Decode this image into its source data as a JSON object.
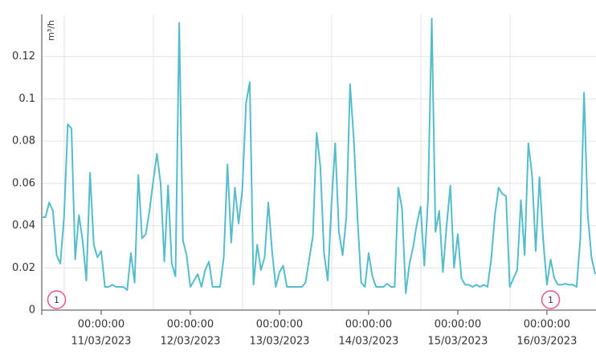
{
  "chart_data": {
    "type": "line",
    "y_label": "m³/h",
    "x": [
      "10/03/2023 08:00:00",
      "10/03/2023 09:00:00",
      "10/03/2023 10:00:00",
      "10/03/2023 11:00:00",
      "10/03/2023 12:00:00",
      "10/03/2023 13:00:00",
      "10/03/2023 14:00:00",
      "10/03/2023 15:00:00",
      "10/03/2023 16:00:00",
      "10/03/2023 17:00:00",
      "10/03/2023 18:00:00",
      "10/03/2023 19:00:00",
      "10/03/2023 20:00:00",
      "10/03/2023 21:00:00",
      "10/03/2023 22:00:00",
      "10/03/2023 23:00:00",
      "11/03/2023 00:00:00",
      "11/03/2023 01:00:00",
      "11/03/2023 02:00:00",
      "11/03/2023 03:00:00",
      "11/03/2023 04:00:00",
      "11/03/2023 05:00:00",
      "11/03/2023 06:00:00",
      "11/03/2023 07:00:00",
      "11/03/2023 08:00:00",
      "11/03/2023 09:00:00",
      "11/03/2023 10:00:00",
      "11/03/2023 11:00:00",
      "11/03/2023 12:00:00",
      "11/03/2023 13:00:00",
      "11/03/2023 14:00:00",
      "11/03/2023 15:00:00",
      "11/03/2023 16:00:00",
      "11/03/2023 17:00:00",
      "11/03/2023 18:00:00",
      "11/03/2023 19:00:00",
      "11/03/2023 20:00:00",
      "11/03/2023 21:00:00",
      "11/03/2023 22:00:00",
      "11/03/2023 23:00:00",
      "12/03/2023 00:00:00",
      "12/03/2023 01:00:00",
      "12/03/2023 02:00:00",
      "12/03/2023 03:00:00",
      "12/03/2023 04:00:00",
      "12/03/2023 05:00:00",
      "12/03/2023 06:00:00",
      "12/03/2023 07:00:00",
      "12/03/2023 08:00:00",
      "12/03/2023 09:00:00",
      "12/03/2023 10:00:00",
      "12/03/2023 11:00:00",
      "12/03/2023 12:00:00",
      "12/03/2023 13:00:00",
      "12/03/2023 14:00:00",
      "12/03/2023 15:00:00",
      "12/03/2023 16:00:00",
      "12/03/2023 17:00:00",
      "12/03/2023 18:00:00",
      "12/03/2023 19:00:00",
      "12/03/2023 20:00:00",
      "12/03/2023 21:00:00",
      "12/03/2023 22:00:00",
      "12/03/2023 23:00:00",
      "13/03/2023 00:00:00",
      "13/03/2023 01:00:00",
      "13/03/2023 02:00:00",
      "13/03/2023 03:00:00",
      "13/03/2023 04:00:00",
      "13/03/2023 05:00:00",
      "13/03/2023 06:00:00",
      "13/03/2023 07:00:00",
      "13/03/2023 08:00:00",
      "13/03/2023 09:00:00",
      "13/03/2023 10:00:00",
      "13/03/2023 11:00:00",
      "13/03/2023 12:00:00",
      "13/03/2023 13:00:00",
      "13/03/2023 14:00:00",
      "13/03/2023 15:00:00",
      "13/03/2023 16:00:00",
      "13/03/2023 17:00:00",
      "13/03/2023 18:00:00",
      "13/03/2023 19:00:00",
      "13/03/2023 20:00:00",
      "13/03/2023 21:00:00",
      "13/03/2023 22:00:00",
      "13/03/2023 23:00:00",
      "14/03/2023 00:00:00",
      "14/03/2023 01:00:00",
      "14/03/2023 02:00:00",
      "14/03/2023 03:00:00",
      "14/03/2023 04:00:00",
      "14/03/2023 05:00:00",
      "14/03/2023 06:00:00",
      "14/03/2023 07:00:00",
      "14/03/2023 08:00:00",
      "14/03/2023 09:00:00",
      "14/03/2023 10:00:00",
      "14/03/2023 11:00:00",
      "14/03/2023 12:00:00",
      "14/03/2023 13:00:00",
      "14/03/2023 14:00:00",
      "14/03/2023 15:00:00",
      "14/03/2023 16:00:00",
      "14/03/2023 17:00:00",
      "14/03/2023 18:00:00",
      "14/03/2023 19:00:00",
      "14/03/2023 20:00:00",
      "14/03/2023 21:00:00",
      "14/03/2023 22:00:00",
      "14/03/2023 23:00:00",
      "15/03/2023 00:00:00",
      "15/03/2023 01:00:00",
      "15/03/2023 02:00:00",
      "15/03/2023 03:00:00",
      "15/03/2023 04:00:00",
      "15/03/2023 05:00:00",
      "15/03/2023 06:00:00",
      "15/03/2023 07:00:00",
      "15/03/2023 08:00:00",
      "15/03/2023 09:00:00",
      "15/03/2023 10:00:00",
      "15/03/2023 11:00:00",
      "15/03/2023 12:00:00",
      "15/03/2023 13:00:00",
      "15/03/2023 14:00:00",
      "15/03/2023 15:00:00",
      "15/03/2023 16:00:00",
      "15/03/2023 17:00:00",
      "15/03/2023 18:00:00",
      "15/03/2023 19:00:00",
      "15/03/2023 20:00:00",
      "15/03/2023 21:00:00",
      "15/03/2023 22:00:00",
      "15/03/2023 23:00:00",
      "16/03/2023 00:00:00",
      "16/03/2023 01:00:00",
      "16/03/2023 02:00:00",
      "16/03/2023 03:00:00",
      "16/03/2023 04:00:00",
      "16/03/2023 05:00:00",
      "16/03/2023 06:00:00",
      "16/03/2023 07:00:00",
      "16/03/2023 08:00:00",
      "16/03/2023 09:00:00",
      "16/03/2023 10:00:00",
      "16/03/2023 11:00:00",
      "16/03/2023 12:00:00",
      "16/03/2023 13:00:00"
    ],
    "series": [
      {
        "color": "#55bccb",
        "values": [
          0.044,
          0.044,
          0.051,
          0.047,
          0.026,
          0.022,
          0.044,
          0.088,
          0.086,
          0.024,
          0.045,
          0.033,
          0.014,
          0.065,
          0.031,
          0.025,
          0.028,
          0.011,
          0.011,
          0.012,
          0.011,
          0.011,
          0.011,
          0.0095,
          0.027,
          0.013,
          0.064,
          0.034,
          0.036,
          0.047,
          0.061,
          0.074,
          0.06,
          0.023,
          0.059,
          0.022,
          0.016,
          0.136,
          0.033,
          0.026,
          0.011,
          0.014,
          0.017,
          0.011,
          0.019,
          0.023,
          0.011,
          0.011,
          0.011,
          0.025,
          0.069,
          0.032,
          0.058,
          0.041,
          0.057,
          0.098,
          0.108,
          0.012,
          0.031,
          0.019,
          0.025,
          0.051,
          0.028,
          0.011,
          0.018,
          0.021,
          0.011,
          0.011,
          0.011,
          0.011,
          0.011,
          0.013,
          0.024,
          0.035,
          0.084,
          0.068,
          0.027,
          0.014,
          0.05,
          0.079,
          0.037,
          0.026,
          0.044,
          0.107,
          0.081,
          0.044,
          0.013,
          0.011,
          0.027,
          0.016,
          0.011,
          0.011,
          0.011,
          0.0125,
          0.011,
          0.011,
          0.058,
          0.048,
          0.008,
          0.022,
          0.03,
          0.041,
          0.049,
          0.021,
          0.053,
          0.138,
          0.037,
          0.047,
          0.018,
          0.04,
          0.059,
          0.02,
          0.036,
          0.015,
          0.012,
          0.012,
          0.011,
          0.012,
          0.011,
          0.012,
          0.011,
          0.024,
          0.045,
          0.058,
          0.055,
          0.054,
          0.011,
          0.015,
          0.019,
          0.052,
          0.026,
          0.079,
          0.064,
          0.028,
          0.063,
          0.033,
          0.012,
          0.024,
          0.015,
          0.012,
          0.012,
          0.0125,
          0.012,
          0.012,
          0.011,
          0.034,
          0.103,
          0.045,
          0.025,
          0.017
        ]
      }
    ],
    "xlim": [
      "10/03/2023 08:00:00",
      "16/03/2023 13:00:00"
    ],
    "xticks": [
      {
        "value": "11/03/2023 00:00:00",
        "label": [
          "00:00:00",
          "11/03/2023"
        ]
      },
      {
        "value": "12/03/2023 00:00:00",
        "label": [
          "00:00:00",
          "12/03/2023"
        ]
      },
      {
        "value": "13/03/2023 00:00:00",
        "label": [
          "00:00:00",
          "13/03/2023"
        ]
      },
      {
        "value": "14/03/2023 00:00:00",
        "label": [
          "00:00:00",
          "14/03/2023"
        ]
      },
      {
        "value": "15/03/2023 00:00:00",
        "label": [
          "00:00:00",
          "15/03/2023"
        ]
      },
      {
        "value": "16/03/2023 00:00:00",
        "label": [
          "00:00:00",
          "16/03/2023"
        ]
      }
    ],
    "ylim": [
      0,
      0.14
    ],
    "yticks": [
      0,
      0.02,
      0.04,
      0.06,
      0.08,
      0.1,
      0.12
    ],
    "grid": true,
    "annotations": [
      {
        "text": "1",
        "x": "10/03/2023 12:00:00"
      },
      {
        "text": "1",
        "x": "16/03/2023 01:00:00"
      }
    ]
  }
}
